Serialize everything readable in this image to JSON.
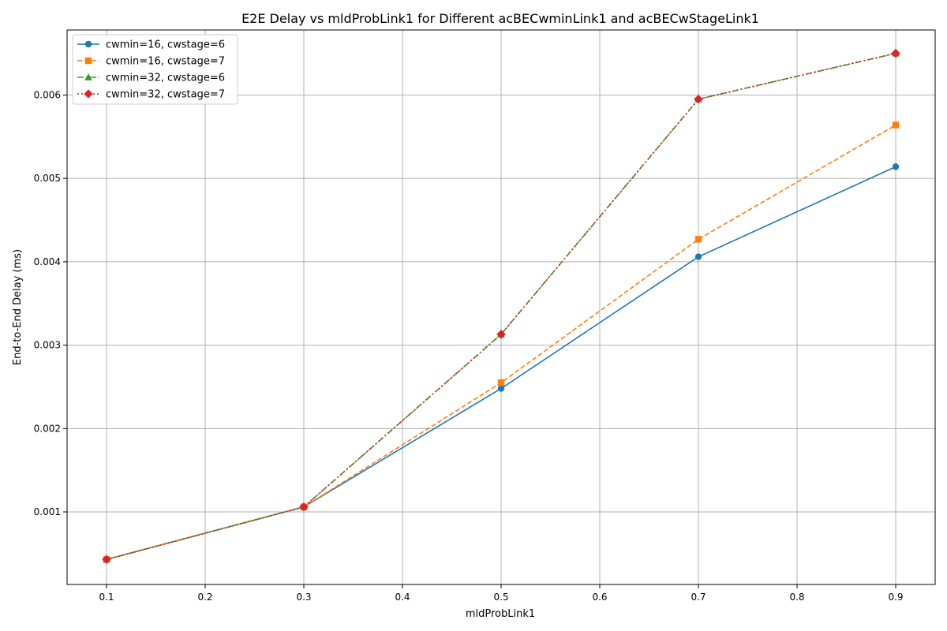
{
  "chart_data": {
    "type": "line",
    "title": "E2E Delay vs mldProbLink1 for Different acBECwminLink1 and acBECwStageLink1",
    "xlabel": "mldProbLink1",
    "ylabel": "End-to-End Delay (ms)",
    "xlim": [
      0.06,
      0.94
    ],
    "ylim": [
      0.00013,
      0.00678
    ],
    "xticks": [
      0.1,
      0.2,
      0.3,
      0.4,
      0.5,
      0.6,
      0.7,
      0.8,
      0.9
    ],
    "xtick_labels": [
      "0.1",
      "0.2",
      "0.3",
      "0.4",
      "0.5",
      "0.6",
      "0.7",
      "0.8",
      "0.9"
    ],
    "yticks": [
      0.001,
      0.002,
      0.003,
      0.004,
      0.005,
      0.006
    ],
    "ytick_labels": [
      "0.001",
      "0.002",
      "0.003",
      "0.004",
      "0.005",
      "0.006"
    ],
    "grid": true,
    "legend_position": "upper-left",
    "x": [
      0.1,
      0.3,
      0.5,
      0.7,
      0.9
    ],
    "series": [
      {
        "name": "cwmin=16, cwstage=6",
        "values": [
          0.00043,
          0.00106,
          0.00248,
          0.00406,
          0.00514
        ],
        "color": "#1f77b4",
        "dash": "solid",
        "marker": "circle"
      },
      {
        "name": "cwmin=16, cwstage=7",
        "values": [
          0.00043,
          0.00106,
          0.00255,
          0.00427,
          0.00564
        ],
        "color": "#ff7f0e",
        "dash": "dashed",
        "marker": "square"
      },
      {
        "name": "cwmin=32, cwstage=6",
        "values": [
          0.00043,
          0.00106,
          0.00313,
          0.00595,
          0.0065
        ],
        "color": "#2ca02c",
        "dash": "dashdot",
        "marker": "triangle"
      },
      {
        "name": "cwmin=32, cwstage=7",
        "values": [
          0.00043,
          0.00106,
          0.00313,
          0.00595,
          0.0065
        ],
        "color": "#d62728",
        "dash": "dotted",
        "marker": "diamond"
      }
    ]
  }
}
